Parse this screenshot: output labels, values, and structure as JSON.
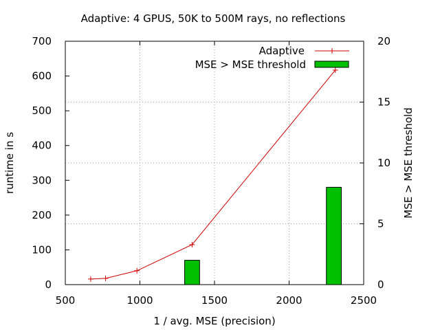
{
  "chart_data": {
    "type": "line+bar",
    "title": "Adaptive: 4 GPUS, 50K to 500M rays, no reflections",
    "xlabel": "1 / avg. MSE (precision)",
    "ylabel": "runtime in s",
    "y2label": "MSE > MSE threshold",
    "xlim": [
      500,
      2500
    ],
    "ylim": [
      0,
      700
    ],
    "y2lim": [
      0,
      20
    ],
    "xticks": [
      500,
      1000,
      1500,
      2000,
      2500
    ],
    "yticks": [
      0,
      100,
      200,
      300,
      400,
      500,
      600,
      700
    ],
    "y2ticks": [
      0,
      5,
      10,
      15,
      20
    ],
    "grid": true,
    "legend_position": "top-right",
    "series": [
      {
        "name": "Adaptive",
        "type": "line",
        "axis": "y",
        "color": "#d00000",
        "marker": "+",
        "x": [
          670,
          770,
          980,
          1350,
          2310
        ],
        "y": [
          16,
          18,
          40,
          115,
          617
        ]
      },
      {
        "name": "MSE > MSE threshold",
        "type": "bar",
        "axis": "y2",
        "color": "#00c000",
        "bar_width": 100,
        "x": [
          1350,
          2300
        ],
        "y": [
          2,
          8
        ]
      }
    ]
  }
}
